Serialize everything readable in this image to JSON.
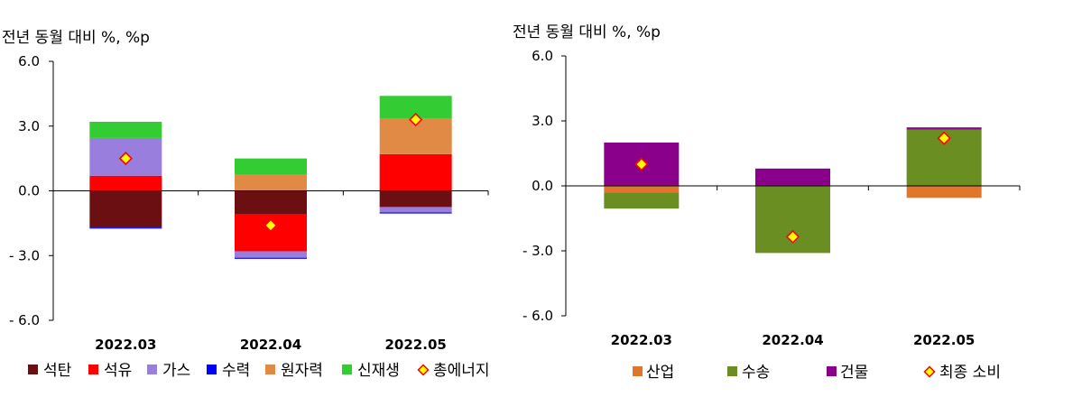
{
  "chart_data": [
    {
      "type": "bar",
      "stacked": true,
      "unit_label": "전년 동월 대비 %, %p",
      "yticks": [
        "6.0",
        "3.0",
        "0.0",
        "- 3.0",
        "- 6.0"
      ],
      "ylim": [
        -6,
        6
      ],
      "categories": [
        "2022.03",
        "2022.04",
        "2022.05"
      ],
      "series": [
        {
          "name": "석탄",
          "color": "#6b0f12",
          "values": [
            -1.7,
            -1.1,
            -0.75
          ]
        },
        {
          "name": "석유",
          "color": "#ff0000",
          "values": [
            0.7,
            -1.7,
            1.7
          ]
        },
        {
          "name": "가스",
          "color": "#9a7ede",
          "values": [
            1.75,
            -0.3,
            -0.25
          ]
        },
        {
          "name": "수력",
          "color": "#0000ff",
          "values": [
            -0.05,
            -0.05,
            -0.05
          ]
        },
        {
          "name": "원자력",
          "color": "#e08a45",
          "values": [
            0.0,
            0.75,
            1.65
          ]
        },
        {
          "name": "신재생",
          "color": "#33cc33",
          "values": [
            0.75,
            0.75,
            1.05
          ]
        }
      ],
      "marker_series": {
        "name": "총에너지",
        "values": [
          1.5,
          -1.6,
          3.3
        ]
      },
      "legend_position": "bottom",
      "grid": false
    },
    {
      "type": "bar",
      "stacked": true,
      "unit_label": "전년 동월 대비 %, %p",
      "yticks": [
        "6.0",
        "3.0",
        "0.0",
        "- 3.0",
        "- 6.0"
      ],
      "ylim": [
        -6,
        6
      ],
      "categories": [
        "2022.03",
        "2022.04",
        "2022.05"
      ],
      "series": [
        {
          "name": "산업",
          "color": "#e0762b",
          "values": [
            -0.3,
            0.0,
            -0.55
          ]
        },
        {
          "name": "수송",
          "color": "#6b8e23",
          "values": [
            -0.75,
            -3.1,
            2.6
          ]
        },
        {
          "name": "건물",
          "color": "#8b008b",
          "values": [
            2.0,
            0.8,
            0.1
          ]
        }
      ],
      "marker_series": {
        "name": "최종 소비",
        "values": [
          1.0,
          -2.35,
          2.2
        ]
      },
      "legend_position": "bottom",
      "grid": false
    }
  ]
}
